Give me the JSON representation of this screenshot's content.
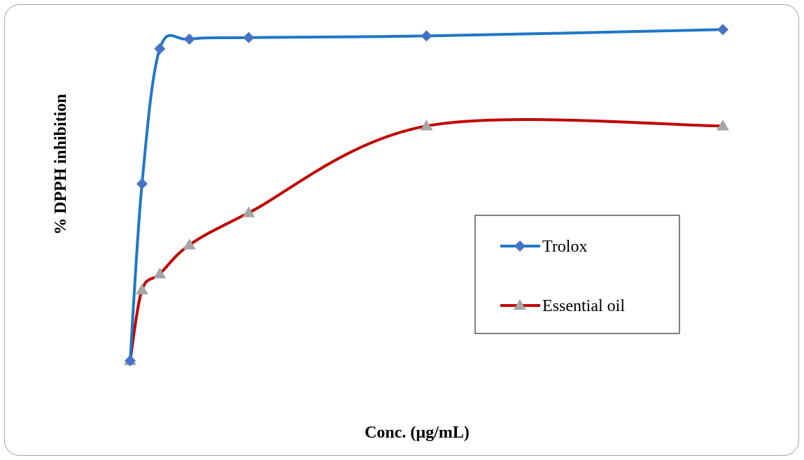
{
  "chart_data": {
    "type": "line",
    "title": "",
    "xlabel": "Conc. (µg/mL)",
    "ylabel": "% DPPH  inhibition",
    "x_axis_visible": false,
    "y_axis_visible": false,
    "grid": false,
    "legend_position": "center-right",
    "smoothed": true,
    "xlim": [
      0,
      200
    ],
    "ylim": [
      0,
      100
    ],
    "series": [
      {
        "name": "Trolox",
        "color": "#1f77c8",
        "marker_color": "#4472c4",
        "marker": "diamond",
        "x": [
          0,
          4,
          10,
          20,
          40,
          100,
          200
        ],
        "y": [
          0,
          55,
          97,
          100,
          100.5,
          101,
          103
        ]
      },
      {
        "name": "Essential oil",
        "color": "#c00000",
        "marker_color": "#a5a5a5",
        "marker": "triangle",
        "x": [
          0,
          4,
          10,
          20,
          40,
          100,
          200
        ],
        "y": [
          0,
          22,
          27,
          36,
          46,
          73,
          73
        ]
      }
    ]
  }
}
